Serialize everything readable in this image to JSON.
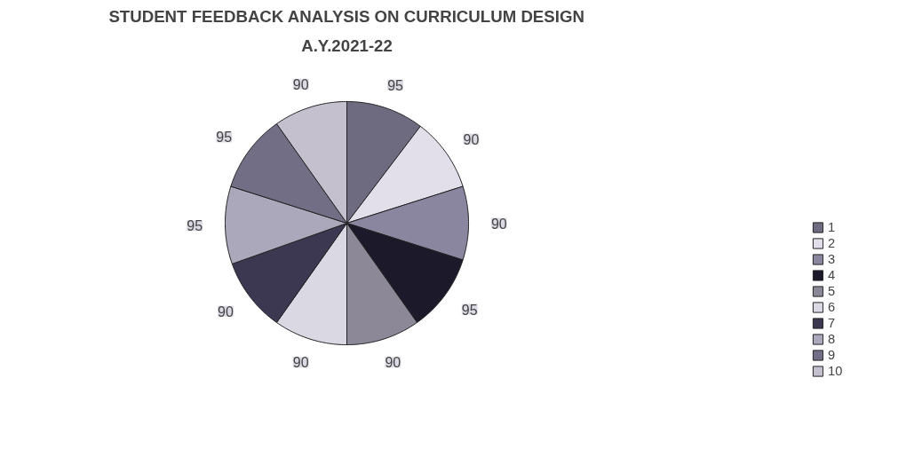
{
  "chart_data": {
    "type": "pie",
    "title": "STUDENT FEEDBACK ANALYSIS ON CURRICULUM DESIGN",
    "subtitle": "A.Y.2021-22",
    "categories": [
      "1",
      "2",
      "3",
      "4",
      "5",
      "6",
      "7",
      "8",
      "9",
      "10"
    ],
    "values": [
      95,
      90,
      90,
      95,
      90,
      90,
      90,
      95,
      95,
      90
    ],
    "colors": [
      "#6e6a80",
      "#e2dfea",
      "#8a86a0",
      "#1c1a2a",
      "#8c8898",
      "#dad8e2",
      "#3c3852",
      "#aaa8ba",
      "#726e86",
      "#c4c0ce"
    ],
    "data_labels": true,
    "legend": "right"
  }
}
